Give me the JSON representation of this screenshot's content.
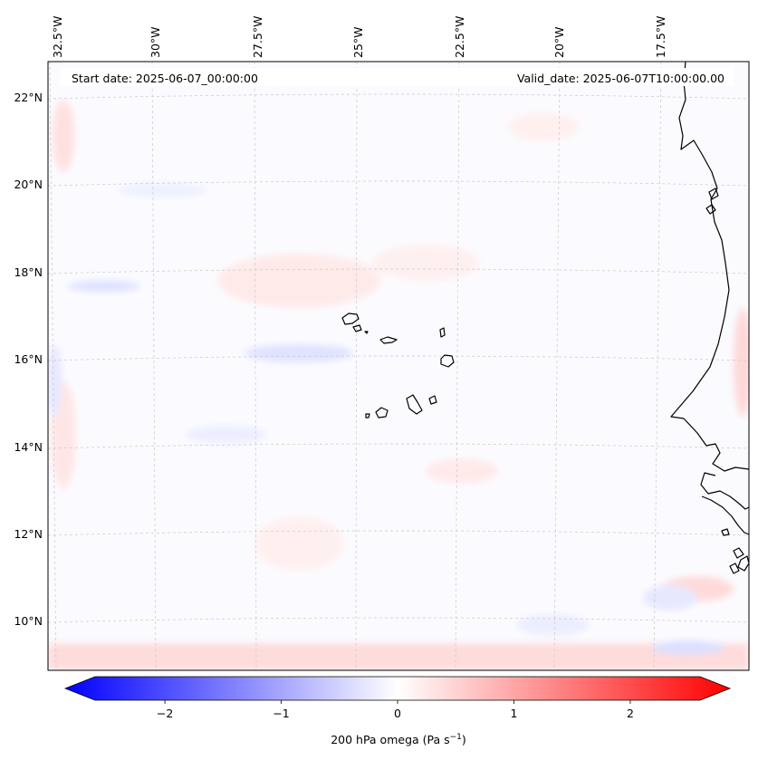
{
  "map": {
    "start_label": "Start date: 2025-06-07_00:00:00",
    "valid_label": "Valid_date: 2025-06-07T10:00:00.00",
    "lon_ticks": [
      "32.5°W",
      "30°W",
      "27.5°W",
      "25°W",
      "22.5°W",
      "20°W",
      "17.5°W"
    ],
    "lat_ticks": [
      "22°N",
      "20°N",
      "18°N",
      "16°N",
      "14°N",
      "12°N",
      "10°N"
    ],
    "features": [
      "Cape Verde islands",
      "West African coastline"
    ]
  },
  "colorbar": {
    "label": "200 hPa omega (Pa s",
    "label_exponent": "−1",
    "label_close": ")",
    "min": -2.6,
    "max": 2.6,
    "ticks": [
      {
        "value": -2,
        "label": "−2"
      },
      {
        "value": -1,
        "label": "−1"
      },
      {
        "value": 0,
        "label": "0"
      },
      {
        "value": 1,
        "label": "1"
      },
      {
        "value": 2,
        "label": "2"
      }
    ],
    "colors": {
      "negative": "#0000ff",
      "zero": "#ffffff",
      "positive": "#ff0000"
    }
  }
}
